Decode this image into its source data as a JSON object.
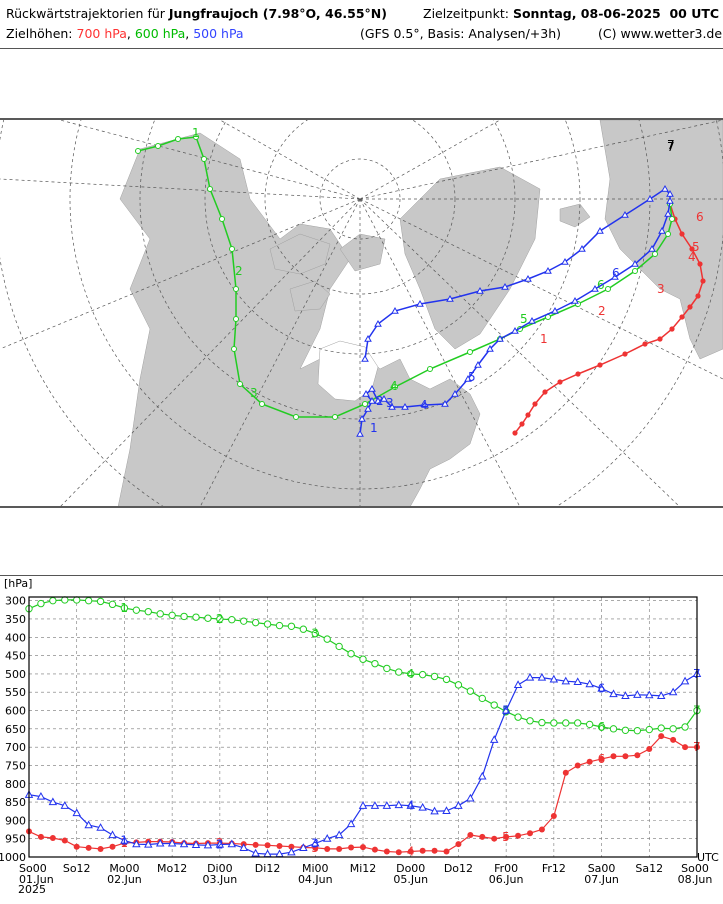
{
  "header": {
    "title_prefix": "Rückwärtstrajektorien für",
    "location": "Jungfraujoch (7.98°O, 46.55°N)",
    "target_label": "Zielzeitpunkt:",
    "target_value": "Sonntag, 08-06-2025  00 UTC",
    "heights_label": "Zielhöhen:",
    "level_700": "700 hPa",
    "level_600": "600 hPa",
    "level_500": "500 hPa",
    "model_info": "(GFS 0.5°, Basis: Analysen/+3h)",
    "copyright": "(C) www.wetter3.de"
  },
  "colors": {
    "h700": "#ee3333",
    "h600": "#22cc22",
    "h500": "#2233ee",
    "land": "#c8c8c8"
  },
  "map": {
    "labels_700": [
      "1",
      "2",
      "3",
      "4",
      "5",
      "6",
      "7"
    ],
    "labels_600": [
      "1",
      "2",
      "3",
      "4",
      "5",
      "6",
      "7"
    ],
    "labels_500": [
      "1",
      "2",
      "3",
      "4",
      "5",
      "6",
      "7"
    ]
  },
  "chart_data": {
    "type": "line",
    "ylabel": "[hPa]",
    "ylim": [
      1000,
      290
    ],
    "yticks": [
      300,
      350,
      400,
      450,
      500,
      550,
      600,
      650,
      700,
      750,
      800,
      850,
      900,
      950,
      1000
    ],
    "xlim": [
      0,
      168
    ],
    "x_unit": "hours after So 01.Jun 00 UTC",
    "utc_label": "UTC",
    "year_label": "2025",
    "xticks": [
      {
        "h": 0,
        "top": "So00",
        "bottom": "01.Jun"
      },
      {
        "h": 12,
        "top": "So12",
        "bottom": ""
      },
      {
        "h": 24,
        "top": "Mo00",
        "bottom": "02.Jun"
      },
      {
        "h": 36,
        "top": "Mo12",
        "bottom": ""
      },
      {
        "h": 48,
        "top": "Di00",
        "bottom": "03.Jun"
      },
      {
        "h": 60,
        "top": "Di12",
        "bottom": ""
      },
      {
        "h": 72,
        "top": "Mi00",
        "bottom": "04.Jun"
      },
      {
        "h": 84,
        "top": "Mi12",
        "bottom": ""
      },
      {
        "h": 96,
        "top": "Do00",
        "bottom": "05.Jun"
      },
      {
        "h": 108,
        "top": "Do12",
        "bottom": ""
      },
      {
        "h": 120,
        "top": "Fr00",
        "bottom": "06.Jun"
      },
      {
        "h": 132,
        "top": "Fr12",
        "bottom": ""
      },
      {
        "h": 144,
        "top": "Sa00",
        "bottom": "07.Jun"
      },
      {
        "h": 156,
        "top": "Sa12",
        "bottom": ""
      },
      {
        "h": 168,
        "top": "So00",
        "bottom": "08.Jun"
      }
    ],
    "series": [
      {
        "name": "700 hPa",
        "marker": "dot",
        "x": [
          0,
          3,
          6,
          9,
          12,
          15,
          18,
          21,
          24,
          27,
          30,
          33,
          36,
          39,
          42,
          45,
          48,
          51,
          54,
          57,
          60,
          63,
          66,
          69,
          72,
          75,
          78,
          81,
          84,
          87,
          90,
          93,
          96,
          99,
          102,
          105,
          108,
          111,
          114,
          117,
          120,
          123,
          126,
          129,
          132,
          135,
          138,
          141,
          144,
          147,
          150,
          153,
          156,
          159,
          162,
          165,
          168
        ],
        "y": [
          930,
          945,
          948,
          955,
          972,
          975,
          978,
          972,
          962,
          960,
          958,
          958,
          959,
          962,
          963,
          962,
          962,
          963,
          965,
          967,
          968,
          970,
          972,
          974,
          975,
          978,
          978,
          974,
          973,
          980,
          985,
          987,
          985,
          983,
          983,
          985,
          965,
          940,
          945,
          950,
          945,
          942,
          935,
          925,
          888,
          770,
          750,
          740,
          732,
          725,
          725,
          722,
          705,
          670,
          680,
          700,
          700
        ],
        "time_labels": [
          {
            "h": 24,
            "t": "1"
          },
          {
            "h": 48,
            "t": "2"
          },
          {
            "h": 72,
            "t": "3"
          },
          {
            "h": 96,
            "t": "4"
          },
          {
            "h": 120,
            "t": "5"
          },
          {
            "h": 144,
            "t": "6"
          },
          {
            "h": 168,
            "t": "7"
          }
        ]
      },
      {
        "name": "600 hPa",
        "marker": "circle",
        "x": [
          0,
          3,
          6,
          9,
          12,
          15,
          18,
          21,
          24,
          27,
          30,
          33,
          36,
          39,
          42,
          45,
          48,
          51,
          54,
          57,
          60,
          63,
          66,
          69,
          72,
          75,
          78,
          81,
          84,
          87,
          90,
          93,
          96,
          99,
          102,
          105,
          108,
          111,
          114,
          117,
          120,
          123,
          126,
          129,
          132,
          135,
          138,
          141,
          144,
          147,
          150,
          153,
          156,
          159,
          162,
          165,
          168
        ],
        "y": [
          322,
          308,
          300,
          298,
          298,
          300,
          302,
          310,
          320,
          326,
          330,
          336,
          340,
          343,
          345,
          348,
          350,
          352,
          356,
          360,
          364,
          368,
          370,
          378,
          390,
          405,
          425,
          445,
          460,
          472,
          485,
          495,
          500,
          502,
          507,
          515,
          530,
          547,
          567,
          585,
          603,
          618,
          628,
          633,
          634,
          634,
          634,
          638,
          645,
          650,
          654,
          655,
          652,
          648,
          650,
          645,
          600
        ],
        "time_labels": [
          {
            "h": 24,
            "t": "1"
          },
          {
            "h": 48,
            "t": "2"
          },
          {
            "h": 72,
            "t": "3"
          },
          {
            "h": 96,
            "t": "4"
          },
          {
            "h": 120,
            "t": "5"
          },
          {
            "h": 144,
            "t": "6"
          },
          {
            "h": 168,
            "t": "7"
          }
        ]
      },
      {
        "name": "500 hPa",
        "marker": "triangle",
        "x": [
          0,
          3,
          6,
          9,
          12,
          15,
          18,
          21,
          24,
          27,
          30,
          33,
          36,
          39,
          42,
          45,
          48,
          51,
          54,
          57,
          60,
          63,
          66,
          69,
          72,
          75,
          78,
          81,
          84,
          87,
          90,
          93,
          96,
          99,
          102,
          105,
          108,
          111,
          114,
          117,
          120,
          123,
          126,
          129,
          132,
          135,
          138,
          141,
          144,
          147,
          150,
          153,
          156,
          159,
          162,
          165,
          168
        ],
        "y": [
          830,
          835,
          850,
          860,
          880,
          913,
          920,
          940,
          955,
          965,
          966,
          963,
          963,
          965,
          967,
          968,
          966,
          965,
          975,
          990,
          992,
          992,
          987,
          975,
          963,
          950,
          940,
          910,
          860,
          860,
          860,
          858,
          860,
          865,
          875,
          874,
          860,
          840,
          780,
          680,
          600,
          530,
          510,
          510,
          515,
          520,
          522,
          528,
          540,
          555,
          560,
          557,
          558,
          560,
          550,
          520,
          500
        ],
        "time_labels": [
          {
            "h": 24,
            "t": "1"
          },
          {
            "h": 48,
            "t": "2"
          },
          {
            "h": 72,
            "t": "3"
          },
          {
            "h": 96,
            "t": "4"
          },
          {
            "h": 120,
            "t": "5"
          },
          {
            "h": 144,
            "t": "6"
          },
          {
            "h": 168,
            "t": "7"
          }
        ]
      }
    ]
  }
}
